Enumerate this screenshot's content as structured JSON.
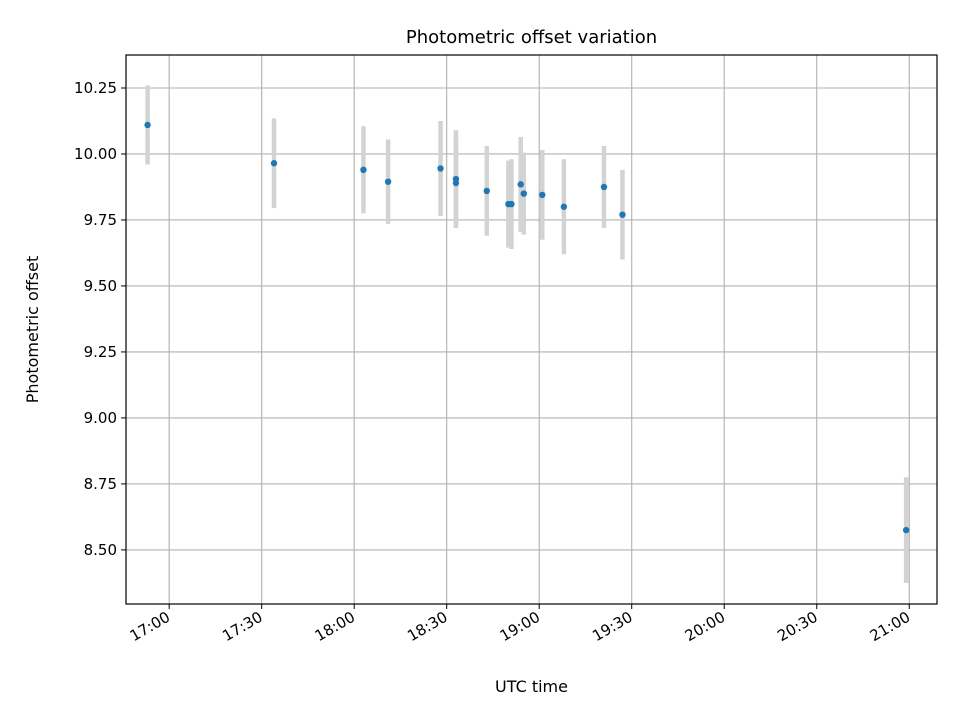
{
  "chart_data": {
    "type": "scatter",
    "title": "Photometric offset variation",
    "xlabel": "UTC time",
    "ylabel": "Photometric offset",
    "xlim": [
      "16:46",
      "21:09"
    ],
    "ylim": [
      8.295,
      10.375
    ],
    "grid": true,
    "x_ticks": [
      "17:00",
      "17:30",
      "18:00",
      "18:30",
      "19:00",
      "19:30",
      "20:00",
      "20:30",
      "21:00"
    ],
    "y_ticks": [
      "8.50",
      "8.75",
      "9.00",
      "9.25",
      "9.50",
      "9.75",
      "10.00",
      "10.25"
    ],
    "colors": {
      "point": "#1f77b4",
      "errorbar": "#d3d3d3",
      "grid": "#b0b0b0"
    },
    "points": [
      {
        "x": "16:53",
        "y": 10.11,
        "err": 0.15
      },
      {
        "x": "17:34",
        "y": 9.965,
        "err": 0.17
      },
      {
        "x": "18:03",
        "y": 9.94,
        "err": 0.165
      },
      {
        "x": "18:11",
        "y": 9.895,
        "err": 0.16
      },
      {
        "x": "18:28",
        "y": 9.945,
        "err": 0.18
      },
      {
        "x": "18:33",
        "y": 9.905,
        "err": 0.185
      },
      {
        "x": "18:33",
        "y": 9.89,
        "err": 0.17
      },
      {
        "x": "18:43",
        "y": 9.86,
        "err": 0.17
      },
      {
        "x": "18:50",
        "y": 9.81,
        "err": 0.165
      },
      {
        "x": "18:51",
        "y": 9.81,
        "err": 0.17
      },
      {
        "x": "18:54",
        "y": 9.885,
        "err": 0.18
      },
      {
        "x": "18:55",
        "y": 9.85,
        "err": 0.155
      },
      {
        "x": "19:01",
        "y": 9.845,
        "err": 0.17
      },
      {
        "x": "19:08",
        "y": 9.8,
        "err": 0.18
      },
      {
        "x": "19:21",
        "y": 9.875,
        "err": 0.155
      },
      {
        "x": "19:27",
        "y": 9.77,
        "err": 0.17
      },
      {
        "x": "20:59",
        "y": 8.575,
        "err": 0.2
      }
    ]
  }
}
